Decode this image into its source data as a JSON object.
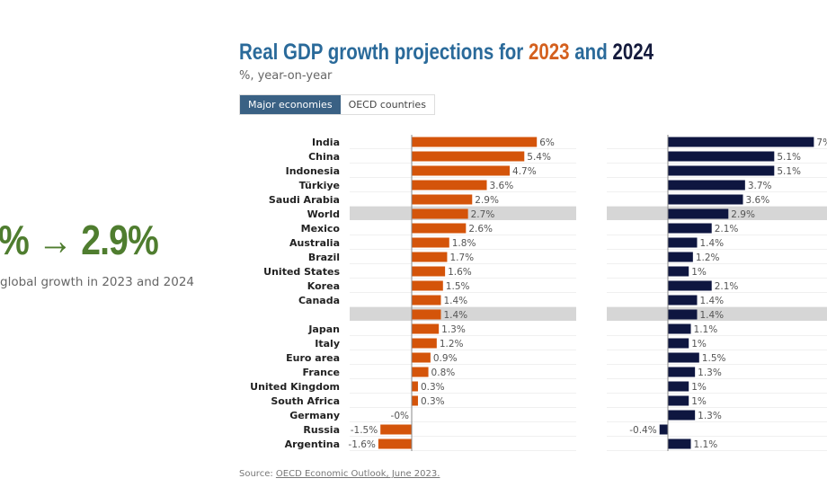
{
  "headline": {
    "value": "% → 2.9%",
    "caption": "global growth in 2023 and 2024",
    "color": "#4f7d2f"
  },
  "header": {
    "title_prefix": "Real GDP growth projections for ",
    "year1": "2023",
    "title_mid": " and ",
    "year2": "2024",
    "subtitle": "%, year-on-year"
  },
  "tabs": [
    {
      "label": "Major economies",
      "active": true
    },
    {
      "label": "OECD countries",
      "active": false
    }
  ],
  "source": {
    "prefix": "Source: ",
    "link": "OECD Economic Outlook, June 2023."
  },
  "chart_data": {
    "type": "bar",
    "orientation": "horizontal",
    "unit": "%",
    "categories": [
      "India",
      "China",
      "Indonesia",
      "Türkiye",
      "Saudi Arabia",
      "World",
      "Mexico",
      "Australia",
      "Brazil",
      "United States",
      "Korea",
      "Canada",
      "",
      "Japan",
      "Italy",
      "Euro area",
      "France",
      "United Kingdom",
      "South Africa",
      "Germany",
      "Russia",
      "Argentina"
    ],
    "highlighted": [
      "World",
      ""
    ],
    "series": [
      {
        "name": "2023",
        "color": "#d4540a",
        "values": [
          6,
          5.4,
          4.7,
          3.6,
          2.9,
          2.7,
          2.6,
          1.8,
          1.7,
          1.6,
          1.5,
          1.4,
          1.4,
          1.3,
          1.2,
          0.9,
          0.8,
          0.3,
          0.3,
          -0.0,
          -1.5,
          -1.6
        ],
        "labels": [
          "6%",
          "5.4%",
          "4.7%",
          "3.6%",
          "2.9%",
          "2.7%",
          "2.6%",
          "1.8%",
          "1.7%",
          "1.6%",
          "1.5%",
          "1.4%",
          "1.4%",
          "1.3%",
          "1.2%",
          "0.9%",
          "0.8%",
          "0.3%",
          "0.3%",
          "-0%",
          "-1.5%",
          "-1.6%"
        ]
      },
      {
        "name": "2024",
        "color": "#0e1640",
        "values": [
          7,
          5.1,
          5.1,
          3.7,
          3.6,
          2.9,
          2.1,
          1.4,
          1.2,
          1,
          2.1,
          1.4,
          1.4,
          1.1,
          1,
          1.5,
          1.3,
          1,
          1,
          1.3,
          -0.4,
          1.1
        ],
        "labels": [
          "7%",
          "5.1%",
          "5.1%",
          "3.7%",
          "3.6%",
          "2.9%",
          "2.1%",
          "1.4%",
          "1.2%",
          "1%",
          "2.1%",
          "1.4%",
          "1.4%",
          "1.1%",
          "1%",
          "1.5%",
          "1.3%",
          "1%",
          "1%",
          "1.3%",
          "-0.4%",
          "1.1%"
        ]
      }
    ]
  }
}
